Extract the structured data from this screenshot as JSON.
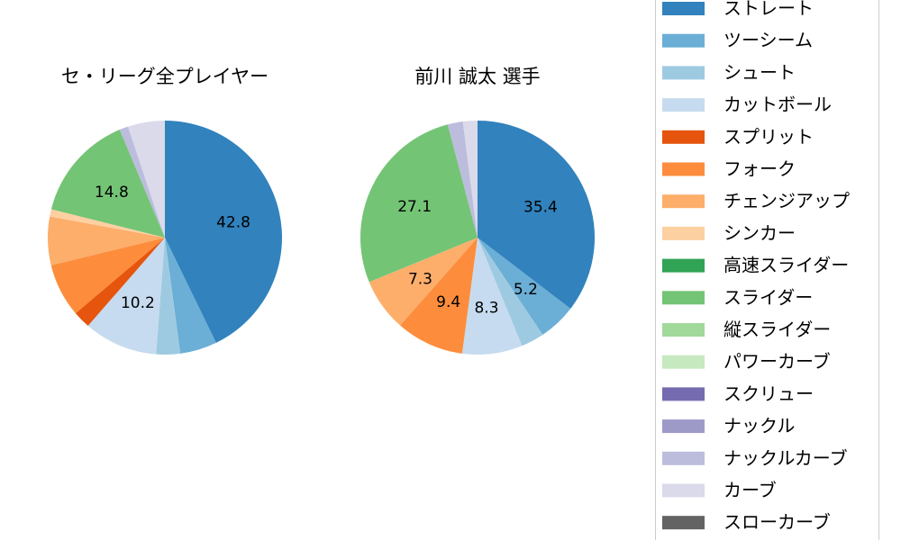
{
  "chart_data": {
    "type": "pie",
    "legend": {
      "placement": "right",
      "entries": [
        {
          "name": "ストレート",
          "color": "#3182bd"
        },
        {
          "name": "ツーシーム",
          "color": "#6baed6"
        },
        {
          "name": "シュート",
          "color": "#9ecae1"
        },
        {
          "name": "カットボール",
          "color": "#c6dbef"
        },
        {
          "name": "スプリット",
          "color": "#e6550d"
        },
        {
          "name": "フォーク",
          "color": "#fd8d3c"
        },
        {
          "name": "チェンジアップ",
          "color": "#fdae6b"
        },
        {
          "name": "シンカー",
          "color": "#fdd0a2"
        },
        {
          "name": "高速スライダー",
          "color": "#31a354"
        },
        {
          "name": "スライダー",
          "color": "#74c476"
        },
        {
          "name": "縦スライダー",
          "color": "#a1d99b"
        },
        {
          "name": "パワーカーブ",
          "color": "#c7e9c0"
        },
        {
          "name": "スクリュー",
          "color": "#756bb1"
        },
        {
          "name": "ナックル",
          "color": "#9e9ac8"
        },
        {
          "name": "ナックルカーブ",
          "color": "#bcbddc"
        },
        {
          "name": "カーブ",
          "color": "#dadaeb"
        },
        {
          "name": "スローカーブ",
          "color": "#636363"
        }
      ]
    },
    "pies": [
      {
        "title": "セ・リーグ全プレイヤー",
        "slices": [
          {
            "name": "ストレート",
            "value": 42.8,
            "label": "42.8"
          },
          {
            "name": "ツーシーム",
            "value": 5.1,
            "label": ""
          },
          {
            "name": "シュート",
            "value": 3.3,
            "label": ""
          },
          {
            "name": "カットボール",
            "value": 10.2,
            "label": "10.2"
          },
          {
            "name": "スプリット",
            "value": 2.4,
            "label": ""
          },
          {
            "name": "フォーク",
            "value": 7.4,
            "label": ""
          },
          {
            "name": "チェンジアップ",
            "value": 6.7,
            "label": ""
          },
          {
            "name": "シンカー",
            "value": 1.0,
            "label": ""
          },
          {
            "name": "スライダー",
            "value": 14.8,
            "label": "14.8"
          },
          {
            "name": "ナックルカーブ",
            "value": 1.2,
            "label": ""
          },
          {
            "name": "カーブ",
            "value": 5.1,
            "label": ""
          }
        ]
      },
      {
        "title": "前川 誠太  選手",
        "slices": [
          {
            "name": "ストレート",
            "value": 35.4,
            "label": "35.4"
          },
          {
            "name": "ツーシーム",
            "value": 5.2,
            "label": "5.2"
          },
          {
            "name": "シュート",
            "value": 3.2,
            "label": ""
          },
          {
            "name": "カットボール",
            "value": 8.3,
            "label": "8.3"
          },
          {
            "name": "フォーク",
            "value": 9.4,
            "label": "9.4"
          },
          {
            "name": "チェンジアップ",
            "value": 7.3,
            "label": "7.3"
          },
          {
            "name": "スライダー",
            "value": 27.1,
            "label": "27.1"
          },
          {
            "name": "ナックルカーブ",
            "value": 2.1,
            "label": ""
          },
          {
            "name": "カーブ",
            "value": 2.0,
            "label": ""
          }
        ]
      }
    ]
  }
}
